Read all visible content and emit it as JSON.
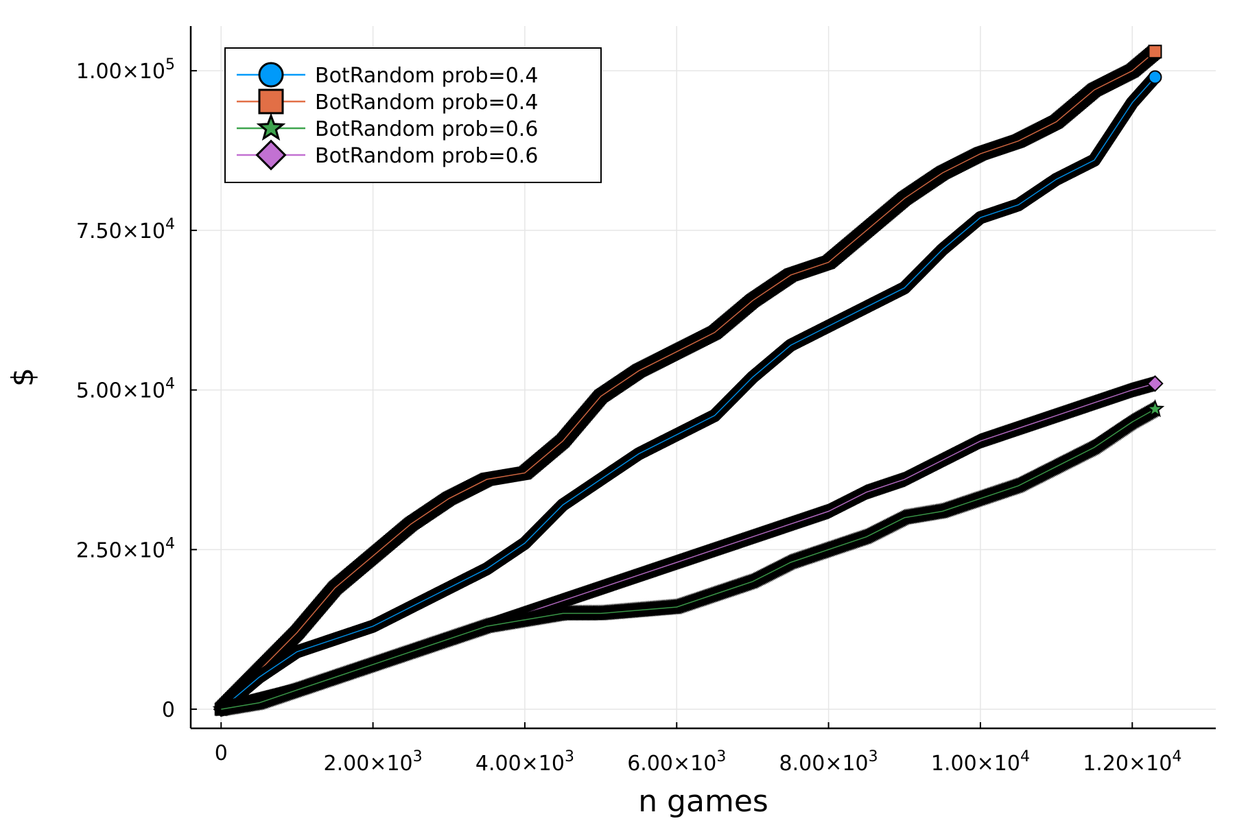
{
  "chart_data": {
    "type": "line",
    "xlabel": "n games",
    "ylabel": "$",
    "xlim": [
      -400,
      13100
    ],
    "ylim": [
      -3000,
      107000
    ],
    "grid": true,
    "legend_position": "top-left",
    "x_ticks": [
      {
        "value": 0,
        "label": "0",
        "exp": ""
      },
      {
        "value": 2000,
        "label": "2.00×10",
        "exp": "3"
      },
      {
        "value": 4000,
        "label": "4.00×10",
        "exp": "3"
      },
      {
        "value": 6000,
        "label": "6.00×10",
        "exp": "3"
      },
      {
        "value": 8000,
        "label": "8.00×10",
        "exp": "3"
      },
      {
        "value": 10000,
        "label": "1.00×10",
        "exp": "4"
      },
      {
        "value": 12000,
        "label": "1.20×10",
        "exp": "4"
      }
    ],
    "y_ticks": [
      {
        "value": 0,
        "label": "0",
        "exp": ""
      },
      {
        "value": 25000,
        "label": "2.50×10",
        "exp": "4"
      },
      {
        "value": 50000,
        "label": "5.00×10",
        "exp": "4"
      },
      {
        "value": 75000,
        "label": "7.50×10",
        "exp": "4"
      },
      {
        "value": 100000,
        "label": "1.00×10",
        "exp": "5"
      }
    ],
    "series": [
      {
        "name": "BotRandom prob=0.4",
        "marker": "circle",
        "color": "#009AFA",
        "x": [
          0,
          500,
          1000,
          1500,
          2000,
          2500,
          3000,
          3500,
          4000,
          4500,
          5000,
          5500,
          6000,
          6500,
          7000,
          7500,
          8000,
          8500,
          9000,
          9500,
          10000,
          10500,
          11000,
          11500,
          12000,
          12300
        ],
        "y": [
          0,
          5000,
          9000,
          11000,
          13000,
          16000,
          19000,
          22000,
          26000,
          32000,
          36000,
          40000,
          43000,
          46000,
          52000,
          57000,
          60000,
          63000,
          66000,
          72000,
          77000,
          79000,
          83000,
          86000,
          95000,
          99000
        ]
      },
      {
        "name": "BotRandom prob=0.4",
        "marker": "square",
        "color": "#E26F46",
        "x": [
          0,
          500,
          1000,
          1500,
          2000,
          2500,
          3000,
          3500,
          4000,
          4500,
          5000,
          5500,
          6000,
          6500,
          7000,
          7500,
          8000,
          8500,
          9000,
          9500,
          10000,
          10500,
          11000,
          11500,
          12000,
          12300
        ],
        "y": [
          0,
          6000,
          12000,
          19000,
          24000,
          29000,
          33000,
          36000,
          37000,
          42000,
          49000,
          53000,
          56000,
          59000,
          64000,
          68000,
          70000,
          75000,
          80000,
          84000,
          87000,
          89000,
          92000,
          97000,
          100000,
          103000
        ]
      },
      {
        "name": "BotRandom prob=0.6",
        "marker": "star",
        "color": "#3EA44E",
        "x": [
          0,
          500,
          1000,
          1500,
          2000,
          2500,
          3000,
          3500,
          4000,
          4500,
          5000,
          5500,
          6000,
          6500,
          7000,
          7500,
          8000,
          8500,
          9000,
          9500,
          10000,
          10500,
          11000,
          11500,
          12000,
          12300
        ],
        "y": [
          0,
          1000,
          3000,
          5000,
          7000,
          9000,
          11000,
          13000,
          14000,
          15000,
          15000,
          15500,
          16000,
          18000,
          20000,
          23000,
          25000,
          27000,
          30000,
          31000,
          33000,
          35000,
          38000,
          41000,
          45000,
          47000
        ]
      },
      {
        "name": "BotRandom prob=0.6",
        "marker": "diamond",
        "color": "#C271D2",
        "x": [
          0,
          500,
          1000,
          1500,
          2000,
          2500,
          3000,
          3500,
          4000,
          4500,
          5000,
          5500,
          6000,
          6500,
          7000,
          7500,
          8000,
          8500,
          9000,
          9500,
          10000,
          10500,
          11000,
          11500,
          12000,
          12300
        ],
        "y": [
          0,
          1500,
          3000,
          5000,
          7000,
          9000,
          11000,
          13000,
          15000,
          17000,
          19000,
          21000,
          23000,
          25000,
          27000,
          29000,
          31000,
          34000,
          36000,
          39000,
          42000,
          44000,
          46000,
          48000,
          50000,
          51000
        ]
      }
    ]
  }
}
